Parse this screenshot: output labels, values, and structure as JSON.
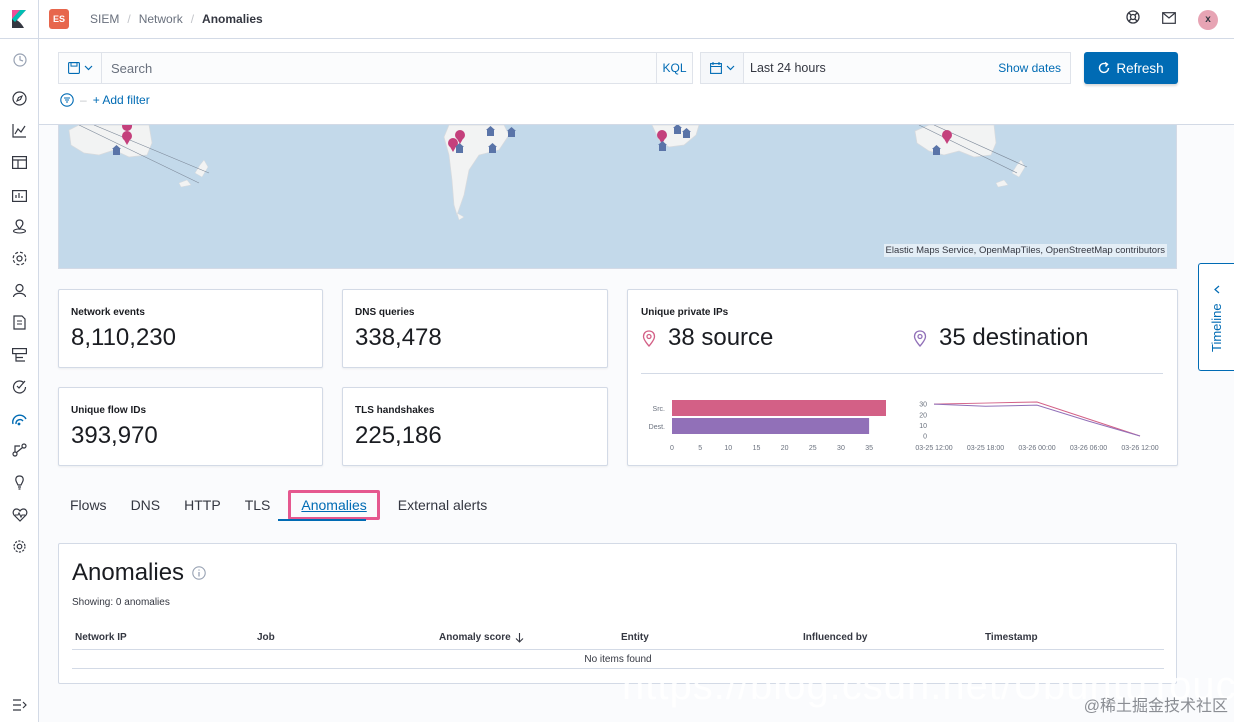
{
  "header": {
    "space_badge": "ES",
    "breadcrumbs": [
      "SIEM",
      "Network",
      "Anomalies"
    ],
    "avatar": "x"
  },
  "query": {
    "search_placeholder": "Search",
    "language": "KQL",
    "time_range": "Last 24 hours",
    "show_dates": "Show dates",
    "refresh": "Refresh",
    "add_filter": "+ Add filter"
  },
  "map": {
    "attribution": "Elastic Maps Service, OpenMapTiles, OpenStreetMap contributors"
  },
  "stats": {
    "network_events": {
      "label": "Network events",
      "value": "8,110,230"
    },
    "dns_queries": {
      "label": "DNS queries",
      "value": "338,478"
    },
    "unique_flow_ids": {
      "label": "Unique flow IDs",
      "value": "393,970"
    },
    "tls_handshakes": {
      "label": "TLS handshakes",
      "value": "225,186"
    }
  },
  "unique_ips": {
    "title": "Unique private IPs",
    "source": "38 source",
    "destination": "35 destination"
  },
  "chart_data": [
    {
      "type": "bar",
      "categories": [
        "Src.",
        "Dest."
      ],
      "values": [
        38,
        35
      ],
      "colors": [
        "#d36086",
        "#9170b8"
      ],
      "xticks": [
        "0",
        "5",
        "10",
        "15",
        "20",
        "25",
        "30",
        "35"
      ],
      "xlim": [
        0,
        38
      ]
    },
    {
      "type": "line",
      "x": [
        "03-25 12:00",
        "03-25 18:00",
        "03-26 00:00",
        "03-26 06:00",
        "03-26 12:00"
      ],
      "series": [
        {
          "values": [
            30,
            31,
            32,
            16,
            0
          ],
          "color": "#d36086"
        },
        {
          "values": [
            30,
            28,
            29,
            14,
            0
          ],
          "color": "#9170b8"
        }
      ],
      "yticks": [
        "0",
        "10",
        "20",
        "30"
      ],
      "ylim": [
        0,
        32
      ]
    }
  ],
  "tabs": [
    "Flows",
    "DNS",
    "HTTP",
    "TLS",
    "Anomalies",
    "External alerts"
  ],
  "active_tab": "Anomalies",
  "anomalies": {
    "title": "Anomalies",
    "showing": "Showing: 0 anomalies",
    "columns": [
      "Network IP",
      "Job",
      "Anomaly score",
      "Entity",
      "Influenced by",
      "Timestamp"
    ],
    "empty": "No items found"
  },
  "timeline": {
    "label": "Timeline"
  },
  "watermark": {
    "big": "https://blog.csdn.net/UbuntuTouch",
    "small": "@稀土掘金技术社区"
  },
  "colors": {
    "accent": "#006bb4",
    "src": "#d36086",
    "dest": "#9170b8",
    "highlight": "#e5588f"
  }
}
